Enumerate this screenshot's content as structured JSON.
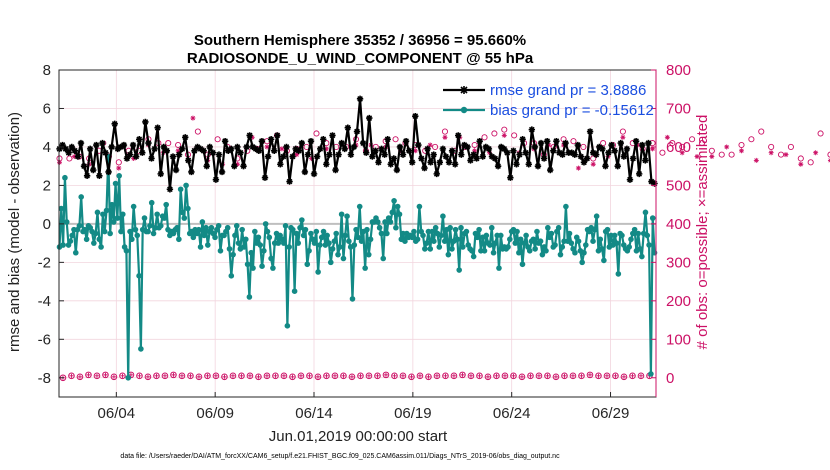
{
  "chart_data": {
    "type": "line",
    "title_line1": "Southern Hemisphere 35352 / 36956 = 95.660%",
    "title_line2": "RADIOSONDE_U_WIND_COMPONENT @ 55 hPa",
    "xlabel": "Jun.01,2019 00:00:00 start",
    "ylabel_left": "rmse and bias (model - observation)",
    "ylabel_right": "# of obs: o=possible; ×=assimilated",
    "footnote": "data file: /Users/raeder/DAI/ATM_forcXX/CAM6_setup/f.e21.FHIST_BGC.f09_025.CAM6assim.011/Diags_NTrS_2019-06/obs_diag_output.nc",
    "x_ticks": [
      {
        "label": "06/04",
        "day": 4
      },
      {
        "label": "06/09",
        "day": 9
      },
      {
        "label": "06/14",
        "day": 14
      },
      {
        "label": "06/19",
        "day": 19
      },
      {
        "label": "06/24",
        "day": 24
      },
      {
        "label": "06/29",
        "day": 29
      }
    ],
    "left_ticks": [
      "-8",
      "-6",
      "-4",
      "-2",
      "0",
      "2",
      "4",
      "6",
      "8"
    ],
    "right_ticks": [
      "0",
      "100",
      "200",
      "300",
      "400",
      "500",
      "600",
      "700",
      "800"
    ],
    "xlim": [
      1.1,
      31.3
    ],
    "ylim_left": [
      -9,
      8
    ],
    "ylim_right": [
      0,
      800
    ],
    "legend": [
      {
        "label": "rmse grand pr = 3.8886",
        "color": "#000000"
      },
      {
        "label": "bias grand pr = -0.15612",
        "color": "#138a86"
      }
    ],
    "colors": {
      "rmse": "#000000",
      "bias": "#138a86",
      "obs": "#cc1166",
      "zero": "#bfbfbf"
    },
    "t_start": 1.125,
    "t_step": 0.25,
    "rmse": [
      3.9,
      4.1,
      3.9,
      3.7,
      4.0,
      3.8,
      3.5,
      4.2,
      3.0,
      2.5,
      3.9,
      2.8,
      4.1,
      2.5,
      4.2,
      3.7,
      2.7,
      4.0,
      5.2,
      3.9,
      4.0,
      4.1,
      3.4,
      3.6,
      4.1,
      3.5,
      4.4,
      3.7,
      5.3,
      4.2,
      3.4,
      3.9,
      5.0,
      2.6,
      4.0,
      3.8,
      1.8,
      3.5,
      2.8,
      3.6,
      3.9,
      4.5,
      3.3,
      2.7,
      3.8,
      4.0,
      3.9,
      3.8,
      3.0,
      4.0,
      3.7,
      2.3,
      3.6,
      2.7,
      4.3,
      3.8,
      3.9,
      3.0,
      4.0,
      3.7,
      3.0,
      4.0,
      4.6,
      4.0,
      3.9,
      3.8,
      4.3,
      2.4,
      3.5,
      4.4,
      3.8,
      4.6,
      3.1,
      3.5,
      4.0,
      2.2,
      3.5,
      3.9,
      3.8,
      4.2,
      2.7,
      3.6,
      4.3,
      2.6,
      3.5,
      3.9,
      4.4,
      3.1,
      3.6,
      4.6,
      2.8,
      3.6,
      4.2,
      3.9,
      5.0,
      3.6,
      4.0,
      4.8,
      6.5,
      4.2,
      3.7,
      5.5,
      3.5,
      3.8,
      3.2,
      3.9,
      3.6,
      4.4,
      3.1,
      3.4,
      2.8,
      4.0,
      3.6,
      4.3,
      3.8,
      3.2,
      5.6,
      4.1,
      3.4,
      2.9,
      3.9,
      3.2,
      3.6,
      2.6,
      3.2,
      3.9,
      3.5,
      3.2,
      3.8,
      3.1,
      4.6,
      3.6,
      4.1,
      4.0,
      3.3,
      3.6,
      3.4,
      4.3,
      3.5,
      4.0,
      3.9,
      3.5,
      3.4,
      3.0,
      4.0,
      3.9,
      3.7,
      2.4,
      3.8,
      3.1,
      3.6,
      4.4,
      3.7,
      3.1,
      4.9,
      4.0,
      3.0,
      4.2,
      3.4,
      4.3,
      2.8,
      3.8,
      4.3,
      3.7,
      3.6,
      4.2,
      3.7,
      3.7,
      3.6,
      4.1,
      3.5,
      3.2,
      3.4,
      4.8,
      3.7,
      3.6,
      4.0,
      3.9,
      3.0,
      3.7,
      4.1,
      3.8,
      3.0,
      4.2,
      3.5,
      3.9,
      2.3,
      3.4,
      4.3,
      2.6,
      4.1,
      3.3,
      4.2,
      2.2,
      2.1
    ],
    "bias": [
      -1.2,
      0.8,
      -1.1,
      2.4,
      0.1,
      -1.1,
      -0.9,
      -0.6,
      -0.3,
      -1.5,
      -0.3,
      -0.1,
      1.4,
      -0.4,
      -0.3,
      -0.8,
      -0.1,
      -0.2,
      -0.4,
      -1.0,
      -0.5,
      0.6,
      -0.8,
      -1.2,
      0.5,
      -0.4,
      0.7,
      3.5,
      -0.5,
      1.0,
      0.1,
      2.1,
      0.3,
      2.5,
      -0.4,
      0.5,
      -1.2,
      -1.4,
      -8.0,
      -0.4,
      -0.8,
      0.9,
      -0.3,
      -0.6,
      -2.7,
      -6.5,
      -0.3,
      0.3,
      -0.4,
      -0.4,
      -0.1,
      1.1,
      -0.5,
      -0.2,
      0.5,
      -0.2,
      -0.1,
      0.4,
      0.3,
      1.0,
      -0.3,
      -0.6,
      -0.4,
      -0.5,
      -0.3,
      -0.2,
      -0.8,
      1.8,
      0.6,
      0.3,
      2.0,
      0.8,
      -0.5,
      -0.4,
      -0.7,
      -0.3,
      -0.5,
      -0.3,
      -1.2,
      0.1,
      -0.6,
      -0.2,
      -1.1,
      -0.4,
      -0.2,
      -0.5,
      -0.7,
      -0.3,
      -0.1,
      -1.4,
      -0.6,
      -0.6,
      -0.4,
      -0.2,
      -1.3,
      -2.7,
      -1.6,
      -0.6,
      -0.1,
      -1.0,
      -1.3,
      -0.3,
      -1.2,
      -0.8,
      -2.1,
      -3.8,
      -1.5,
      -2.3,
      -0.4,
      -1.0,
      -0.7,
      -1.1,
      -2.2,
      -1.4,
      0.0,
      -0.4,
      -0.7,
      -1.8,
      -2.3,
      -1.0,
      -0.5,
      -1.0,
      -0.6,
      -0.8,
      -1.0,
      -0.1,
      -5.3,
      -1.2,
      -0.2,
      -0.3,
      -3.5,
      -0.5,
      -1.0,
      -0.2,
      0.2,
      -0.6,
      -0.3,
      -2.1,
      -1.4,
      -0.5,
      -0.8,
      -1.0,
      -0.4,
      -2.5,
      -1.1,
      -0.7,
      -0.4,
      -1.1,
      -0.6,
      -1.0,
      -2.0,
      -1.3,
      -0.9,
      -0.5,
      -1.6,
      -1.2,
      0.5,
      -1.8,
      -0.6,
      0.4,
      -0.9,
      -1.2,
      -3.9,
      -1.1,
      -0.3,
      -0.7,
      0.9,
      -0.9,
      -0.4,
      -2.3,
      -0.3,
      -1.6,
      -0.8,
      0.1,
      0.1,
      0.3,
      0.1,
      -0.2,
      -0.5,
      -1.8,
      0.1,
      -0.5,
      0.3,
      0.1,
      0.6,
      1.2,
      -0.2,
      0.9,
      0.5,
      -0.8,
      -0.5,
      -0.9,
      -0.5,
      -0.7,
      -0.6,
      -0.7,
      -0.4,
      -0.9,
      -0.8,
      0.9,
      -0.4,
      -0.6,
      -1.3,
      -1.0,
      -0.4,
      -1.3,
      -0.4,
      -0.9,
      -0.2,
      -0.5,
      -1.2,
      -0.6,
      0.4,
      -0.9,
      -0.3,
      -1.6,
      -0.2,
      -1.3,
      -0.9,
      -0.3,
      -0.8,
      -2.4,
      -0.2,
      -1.2,
      -0.5,
      -0.4,
      -1.1,
      -1.3,
      -1.4,
      -1.7,
      -0.5,
      -0.7,
      -0.3,
      -1.4,
      -0.7,
      -1.4,
      -0.6,
      -1.0,
      -1.1,
      -0.2,
      -1.5,
      -1.0,
      -0.6,
      -2.3,
      -0.6,
      -1.3,
      -1.2,
      -1.3,
      -1.2,
      -0.8,
      -0.4,
      -0.3,
      -1.0,
      -0.4,
      -1.5,
      -0.8,
      -2.1,
      -1.0,
      -0.6,
      -1.2,
      -1.4,
      -0.9,
      -0.8,
      -1.3,
      -0.4,
      -1.0,
      -0.9,
      -1.6,
      -1.2,
      -1.4,
      -0.2,
      -0.7,
      -0.5,
      -1.2,
      -1.1,
      -0.4,
      -0.2,
      -1.6,
      -1.2,
      -0.9,
      0.9,
      -0.9,
      -0.5,
      -1.0,
      -1.3,
      -1.5,
      -0.7,
      -0.9,
      -1.4,
      -2.0,
      -1.5,
      -1.1,
      -0.3,
      -0.4,
      -0.2,
      -0.9,
      -0.3,
      0.4,
      -1.4,
      -0.8,
      -1.3,
      -1.9,
      -0.4,
      -0.3,
      -1.2,
      -0.6,
      -1.1,
      -0.6,
      -1.0,
      -2.6,
      -0.5,
      -0.6,
      -1.1,
      -1.3,
      -1.4,
      -1.2,
      -0.8,
      -0.5,
      -0.3,
      -1.4,
      -0.5,
      -1.3,
      -1.7,
      -0.5,
      0.6,
      -0.6,
      -1.1,
      -7.8,
      0.3,
      -1.5
    ],
    "obs_possible": [
      570,
      560,
      570,
      585,
      575,
      575,
      570,
      560,
      590,
      620,
      575,
      580,
      560,
      590,
      590,
      585,
      590,
      575,
      620,
      590,
      610,
      600,
      610,
      620,
      605,
      595,
      580,
      690,
      640,
      590,
      580,
      595,
      620,
      570,
      600,
      565,
      570,
      600,
      590,
      640,
      595,
      580,
      615,
      665,
      630,
      610,
      590,
      600,
      595,
      580,
      600,
      585,
      635,
      590,
      610,
      600,
      600,
      625,
      600,
      580,
      620,
      655,
      590,
      620,
      600,
      640,
      615,
      600,
      620,
      605,
      610,
      630,
      605,
      610,
      590,
      620,
      600,
      615,
      640,
      625,
      590,
      640,
      600,
      620,
      605,
      610,
      625,
      600,
      635,
      600,
      645,
      590,
      630,
      600,
      610,
      620,
      610,
      605,
      580,
      620,
      600,
      590,
      620,
      570,
      615,
      560,
      600,
      640,
      570,
      590,
      610,
      590,
      605,
      600,
      640,
      600,
      610,
      620,
      595,
      590,
      610,
      600,
      585,
      640,
      610,
      580,
      600,
      560,
      620,
      590,
      610,
      600,
      590,
      595,
      580,
      615,
      580,
      590,
      605,
      600,
      620,
      580,
      640,
      605,
      600,
      610,
      580,
      595,
      600,
      615,
      570,
      620,
      560,
      600,
      635,
      640,
      580,
      600,
      595,
      620,
      610,
      580,
      600,
      560,
      600,
      630,
      590,
      610,
      600,
      600,
      605,
      580,
      595,
      610,
      620,
      555,
      605,
      600,
      580,
      600,
      625,
      590,
      610,
      600,
      620,
      600,
      640,
      600,
      605,
      570,
      600,
      620,
      580,
      640,
      600,
      610,
      640,
      600,
      610,
      560,
      595,
      580,
      600,
      600,
      620
    ],
    "obs_assim": [
      560,
      545,
      560,
      575,
      560,
      560,
      555,
      545,
      575,
      610,
      560,
      565,
      545,
      575,
      575,
      570,
      575,
      560,
      605,
      575,
      595,
      585,
      595,
      605,
      590,
      580,
      565,
      675,
      625,
      575,
      565,
      580,
      605,
      555,
      585,
      550,
      555,
      585,
      575,
      625,
      580,
      565,
      600,
      650,
      615,
      595,
      575,
      585,
      580,
      565,
      585,
      570,
      620,
      575,
      595,
      585,
      585,
      610,
      585,
      565,
      605,
      640,
      575,
      605,
      585,
      625,
      600,
      585,
      605,
      590,
      595,
      615,
      590,
      595,
      575,
      605,
      585,
      600,
      625,
      610,
      575,
      625,
      585,
      605,
      590,
      595,
      610,
      585,
      620,
      585,
      630,
      575,
      615,
      585,
      595,
      605,
      595,
      590,
      565,
      605,
      585,
      575,
      605,
      555,
      600,
      545,
      585,
      625,
      555,
      575,
      595,
      575,
      590,
      585,
      625,
      585,
      595,
      605,
      580,
      575,
      595,
      585,
      570,
      625,
      595,
      565,
      585,
      545,
      605,
      575,
      595,
      585,
      575,
      580,
      565,
      600,
      565,
      575,
      590,
      585,
      605,
      565,
      625,
      590,
      585,
      595,
      565,
      580,
      585,
      600,
      555,
      605,
      545,
      585,
      620,
      625,
      565,
      585,
      580,
      605,
      595,
      565,
      585,
      545,
      585,
      615,
      575,
      595,
      585,
      585,
      590,
      565,
      580,
      595,
      605,
      540,
      590,
      585,
      565,
      585,
      610,
      575,
      595,
      585,
      605,
      585,
      625,
      585,
      590,
      555,
      585,
      605,
      565,
      625,
      585,
      595,
      625,
      585,
      595,
      545,
      580,
      565,
      585,
      585,
      605
    ],
    "obs_bottom": [
      -8.0,
      -7.9,
      -7.95,
      -7.85,
      -7.9,
      -7.85,
      -7.95,
      -7.9,
      -7.85,
      -7.9,
      -7.95,
      -7.9,
      -7.9,
      -7.85,
      -7.9,
      -7.9,
      -7.95,
      -7.9,
      -7.9,
      -7.95,
      -7.9,
      -7.9,
      -7.9,
      -7.95,
      -7.9,
      -7.9,
      -7.9,
      -7.95,
      -7.9,
      -7.9,
      -7.95,
      -7.9,
      -7.9,
      -7.9,
      -7.95,
      -7.9,
      -7.9,
      -7.9,
      -7.85,
      -7.9,
      -7.9,
      -7.95,
      -7.9,
      -7.95,
      -7.9,
      -7.9,
      -7.9,
      -7.85,
      -7.9,
      -7.9,
      -7.95,
      -7.9,
      -7.9,
      -7.9,
      -7.95,
      -7.9,
      -7.9,
      -7.9,
      -7.95,
      -7.9,
      -7.9,
      -7.9,
      -7.85,
      -7.9,
      -7.9,
      -7.9,
      -7.95,
      -7.9,
      -7.9,
      -7.9
    ]
  }
}
